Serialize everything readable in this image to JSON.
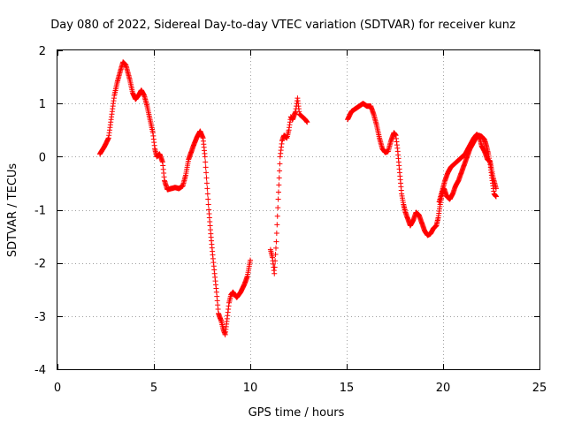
{
  "chart_data": {
    "type": "scatter",
    "title": "Day 080 of 2022, Sidereal Day-to-day VTEC variation (SDTVAR) for receiver kunz",
    "xlabel": "GPS time / hours",
    "ylabel": "SDTVAR / TECUs",
    "xlim": [
      0,
      25
    ],
    "ylim": [
      -4,
      2
    ],
    "grid": true,
    "marker": "plus",
    "x_ticks": [
      {
        "value": 0,
        "label": "0"
      },
      {
        "value": 5,
        "label": "5"
      },
      {
        "value": 10,
        "label": "10"
      },
      {
        "value": 15,
        "label": "15"
      },
      {
        "value": 20,
        "label": "20"
      },
      {
        "value": 25,
        "label": "25"
      }
    ],
    "y_ticks": [
      {
        "value": -4,
        "label": "-4"
      },
      {
        "value": -3,
        "label": "-3"
      },
      {
        "value": -2,
        "label": "-2"
      },
      {
        "value": -1,
        "label": "-1"
      },
      {
        "value": 0,
        "label": "0"
      },
      {
        "value": 1,
        "label": "1"
      },
      {
        "value": 2,
        "label": "2"
      }
    ],
    "series": [
      {
        "name": "SDTVAR",
        "color": "#ff0000",
        "segments": [
          [
            [
              2.2,
              0.05
            ],
            [
              2.45,
              0.2
            ],
            [
              2.65,
              0.35
            ],
            [
              2.8,
              0.75
            ],
            [
              2.95,
              1.15
            ],
            [
              3.1,
              1.4
            ],
            [
              3.25,
              1.6
            ],
            [
              3.4,
              1.78
            ],
            [
              3.55,
              1.72
            ],
            [
              3.75,
              1.45
            ],
            [
              3.9,
              1.2
            ],
            [
              4.05,
              1.08
            ],
            [
              4.2,
              1.15
            ],
            [
              4.35,
              1.25
            ],
            [
              4.5,
              1.15
            ],
            [
              4.65,
              0.95
            ],
            [
              4.8,
              0.7
            ],
            [
              4.95,
              0.45
            ],
            [
              5.05,
              0.15
            ],
            [
              5.15,
              0.0
            ],
            [
              5.3,
              0.05
            ],
            [
              5.45,
              -0.1
            ],
            [
              5.55,
              -0.45
            ],
            [
              5.7,
              -0.62
            ],
            [
              5.9,
              -0.6
            ],
            [
              6.1,
              -0.58
            ],
            [
              6.3,
              -0.6
            ],
            [
              6.5,
              -0.55
            ],
            [
              6.65,
              -0.35
            ],
            [
              6.8,
              -0.05
            ],
            [
              6.95,
              0.1
            ],
            [
              7.1,
              0.25
            ],
            [
              7.25,
              0.38
            ],
            [
              7.4,
              0.48
            ],
            [
              7.55,
              0.35
            ],
            [
              7.65,
              0.0
            ],
            [
              7.75,
              -0.5
            ],
            [
              7.85,
              -1.0
            ],
            [
              7.95,
              -1.45
            ],
            [
              8.05,
              -1.85
            ],
            [
              8.15,
              -2.2
            ],
            [
              8.25,
              -2.55
            ],
            [
              8.35,
              -2.95
            ],
            [
              8.5,
              -3.1
            ],
            [
              8.6,
              -3.25
            ],
            [
              8.7,
              -3.35
            ],
            [
              8.8,
              -3.05
            ],
            [
              8.9,
              -2.75
            ],
            [
              9.0,
              -2.6
            ],
            [
              9.1,
              -2.55
            ],
            [
              9.3,
              -2.65
            ],
            [
              9.5,
              -2.55
            ],
            [
              9.7,
              -2.4
            ],
            [
              9.85,
              -2.25
            ],
            [
              10.0,
              -1.95
            ]
          ],
          [
            [
              11.05,
              -1.75
            ],
            [
              11.15,
              -1.9
            ],
            [
              11.25,
              -2.2
            ],
            [
              11.35,
              -1.6
            ],
            [
              11.45,
              -0.8
            ],
            [
              11.55,
              0.0
            ],
            [
              11.65,
              0.3
            ],
            [
              11.75,
              0.4
            ],
            [
              11.9,
              0.35
            ],
            [
              12.0,
              0.5
            ],
            [
              12.1,
              0.75
            ],
            [
              12.2,
              0.7
            ],
            [
              12.35,
              0.85
            ],
            [
              12.45,
              1.1
            ],
            [
              12.55,
              0.8
            ],
            [
              12.7,
              0.75
            ],
            [
              12.85,
              0.7
            ],
            [
              12.95,
              0.65
            ]
          ],
          [
            [
              15.05,
              0.7
            ],
            [
              15.25,
              0.85
            ],
            [
              15.45,
              0.9
            ],
            [
              15.65,
              0.95
            ],
            [
              15.85,
              1.0
            ],
            [
              16.05,
              0.95
            ],
            [
              16.25,
              0.95
            ],
            [
              16.4,
              0.8
            ],
            [
              16.55,
              0.6
            ],
            [
              16.7,
              0.35
            ],
            [
              16.85,
              0.15
            ],
            [
              17.0,
              0.08
            ],
            [
              17.15,
              0.1
            ],
            [
              17.3,
              0.3
            ],
            [
              17.45,
              0.45
            ],
            [
              17.55,
              0.4
            ],
            [
              17.65,
              0.1
            ],
            [
              17.75,
              -0.3
            ],
            [
              17.85,
              -0.7
            ],
            [
              17.95,
              -0.9
            ],
            [
              18.05,
              -1.05
            ],
            [
              18.15,
              -1.15
            ],
            [
              18.3,
              -1.3
            ],
            [
              18.45,
              -1.2
            ],
            [
              18.6,
              -1.05
            ],
            [
              18.75,
              -1.1
            ],
            [
              18.9,
              -1.25
            ],
            [
              19.05,
              -1.4
            ],
            [
              19.2,
              -1.48
            ],
            [
              19.35,
              -1.45
            ],
            [
              19.5,
              -1.35
            ],
            [
              19.65,
              -1.3
            ],
            [
              19.75,
              -1.15
            ],
            [
              19.85,
              -0.9
            ],
            [
              19.95,
              -0.7
            ],
            [
              20.05,
              -0.6
            ],
            [
              20.2,
              -0.75
            ],
            [
              20.35,
              -0.8
            ],
            [
              20.5,
              -0.7
            ],
            [
              20.65,
              -0.55
            ],
            [
              20.8,
              -0.45
            ],
            [
              20.95,
              -0.3
            ],
            [
              21.1,
              -0.15
            ],
            [
              21.25,
              0.0
            ],
            [
              21.4,
              0.15
            ],
            [
              21.55,
              0.25
            ],
            [
              21.7,
              0.35
            ],
            [
              21.85,
              0.4
            ],
            [
              22.0,
              0.38
            ],
            [
              22.15,
              0.32
            ],
            [
              22.25,
              0.2
            ],
            [
              22.35,
              0.05
            ],
            [
              22.45,
              -0.15
            ],
            [
              22.55,
              -0.45
            ],
            [
              22.65,
              -0.7
            ],
            [
              22.75,
              -0.75
            ]
          ],
          [
            [
              19.8,
              -0.85
            ],
            [
              19.95,
              -0.65
            ],
            [
              20.1,
              -0.45
            ],
            [
              20.25,
              -0.3
            ],
            [
              20.4,
              -0.2
            ],
            [
              20.55,
              -0.15
            ],
            [
              20.7,
              -0.1
            ],
            [
              20.85,
              -0.05
            ],
            [
              21.0,
              0.0
            ],
            [
              21.15,
              0.05
            ],
            [
              21.3,
              0.15
            ],
            [
              21.45,
              0.25
            ],
            [
              21.6,
              0.35
            ],
            [
              21.75,
              0.42
            ],
            [
              21.9,
              0.35
            ],
            [
              22.0,
              0.2
            ],
            [
              22.15,
              0.1
            ],
            [
              22.3,
              -0.05
            ],
            [
              22.45,
              -0.1
            ],
            [
              22.6,
              -0.4
            ],
            [
              22.75,
              -0.6
            ]
          ]
        ]
      }
    ]
  }
}
